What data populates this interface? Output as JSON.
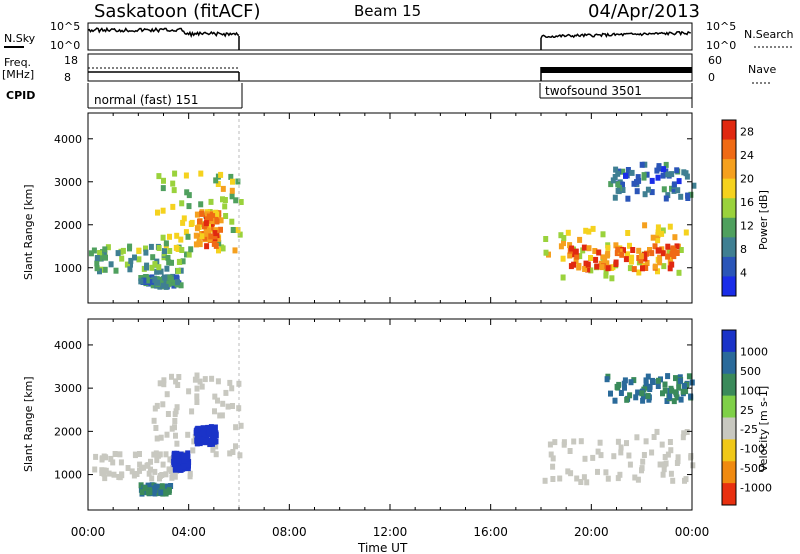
{
  "header": {
    "station": "Saskatoon (fitACF)",
    "beam": "Beam 15",
    "date": "04/Apr/2013"
  },
  "noise_panel": {
    "left_label": "N.Sky",
    "right_label": "N.Search",
    "left_ticks": [
      "10^5",
      "10^0"
    ],
    "right_ticks": [
      "10^5",
      "10^0"
    ]
  },
  "freq_panel": {
    "left_label": "Freq.",
    "left_unit": "[MHz]",
    "right_label": "Nave",
    "left_ticks": [
      "18",
      "8"
    ],
    "right_ticks": [
      "60",
      "0"
    ]
  },
  "cpid_panel": {
    "label": "CPID",
    "modes": [
      {
        "name": "normal (fast) 151",
        "start_hour": 0,
        "end_hour": 6
      },
      {
        "name": "twofsound 3501",
        "start_hour": 18,
        "end_hour": 24
      }
    ]
  },
  "colors": {
    "power_scale": [
      "#1a2de8",
      "#2a55b8",
      "#3f7f92",
      "#4fa05e",
      "#9ad23c",
      "#f5d21e",
      "#f5a01e",
      "#ef6a14",
      "#e02810"
    ],
    "velocity_scale": [
      "#1a33c8",
      "#2a6a9a",
      "#3a8a5a",
      "#7fd048",
      "#c8c8c0",
      "#f0c818",
      "#f08a10",
      "#e83010"
    ],
    "ground_scatter": "#c8c8c0"
  },
  "chart_data": [
    {
      "type": "heatmap",
      "title": "",
      "xlabel": "Time UT",
      "ylabel": "Slant Range [km]",
      "x_ticks": [
        "00:00",
        "04:00",
        "08:00",
        "12:00",
        "16:00",
        "20:00",
        "00:00"
      ],
      "y_ticks": [
        "1000",
        "2000",
        "3000",
        "4000"
      ],
      "xlim_hours": [
        0,
        24
      ],
      "ylim_km": [
        180,
        4600
      ],
      "colorbar": {
        "label": "Power [dB]",
        "ticks": [
          "4",
          "8",
          "12",
          "16",
          "20",
          "24",
          "28"
        ],
        "range": [
          0,
          30
        ]
      },
      "regions": [
        {
          "name": "main-band-early",
          "t0": 0.0,
          "t1": 4.0,
          "r0": 900,
          "r1": 1500,
          "level": 12
        },
        {
          "name": "rising-band",
          "t0": 2.5,
          "t1": 6.0,
          "r0": 1400,
          "r1": 3200,
          "level": 16
        },
        {
          "name": "hot-spot-early",
          "t0": 4.2,
          "t1": 5.2,
          "r0": 1500,
          "r1": 2300,
          "level": 24
        },
        {
          "name": "low-patch",
          "t0": 2.0,
          "t1": 3.6,
          "r0": 550,
          "r1": 800,
          "level": 8
        },
        {
          "name": "main-band-late",
          "t0": 18.0,
          "t1": 24.0,
          "r0": 750,
          "r1": 2000,
          "level": 18
        },
        {
          "name": "core-late",
          "t0": 19.0,
          "t1": 23.5,
          "r0": 950,
          "r1": 1500,
          "level": 26
        },
        {
          "name": "upper-band-late",
          "t0": 20.5,
          "t1": 24.0,
          "r0": 2600,
          "r1": 3400,
          "level": 6
        }
      ]
    },
    {
      "type": "heatmap",
      "title": "",
      "xlabel": "Time UT",
      "ylabel": "Slant Range [km]",
      "x_ticks": [
        "00:00",
        "04:00",
        "08:00",
        "12:00",
        "16:00",
        "20:00",
        "00:00"
      ],
      "y_ticks": [
        "1000",
        "2000",
        "3000",
        "4000"
      ],
      "xlim_hours": [
        0,
        24
      ],
      "ylim_km": [
        180,
        4600
      ],
      "colorbar": {
        "label": "Velocity [m s-1]",
        "ticks": [
          "1000",
          "500",
          "100",
          "25",
          "-25",
          "-100",
          "-500",
          "-1000"
        ],
        "range": [
          -1200,
          1200
        ]
      },
      "regions": [
        {
          "name": "ground-band-early",
          "t0": 0.0,
          "t1": 4.0,
          "r0": 900,
          "r1": 1500,
          "velocity": 0
        },
        {
          "name": "ground-rising",
          "t0": 2.5,
          "t1": 6.0,
          "r0": 1400,
          "r1": 3300,
          "velocity": 0
        },
        {
          "name": "positive-patch-a",
          "t0": 3.3,
          "t1": 3.9,
          "r0": 1100,
          "r1": 1500,
          "velocity": 900
        },
        {
          "name": "positive-patch-b",
          "t0": 4.2,
          "t1": 5.0,
          "r0": 1700,
          "r1": 2100,
          "velocity": 700
        },
        {
          "name": "low-patch",
          "t0": 2.0,
          "t1": 3.2,
          "r0": 560,
          "r1": 760,
          "velocity": 100
        },
        {
          "name": "ground-band-late",
          "t0": 18.0,
          "t1": 24.0,
          "r0": 800,
          "r1": 2000,
          "velocity": 0
        },
        {
          "name": "upper-late",
          "t0": 20.5,
          "t1": 24.0,
          "r0": 2700,
          "r1": 3300,
          "velocity": 100
        }
      ]
    }
  ]
}
